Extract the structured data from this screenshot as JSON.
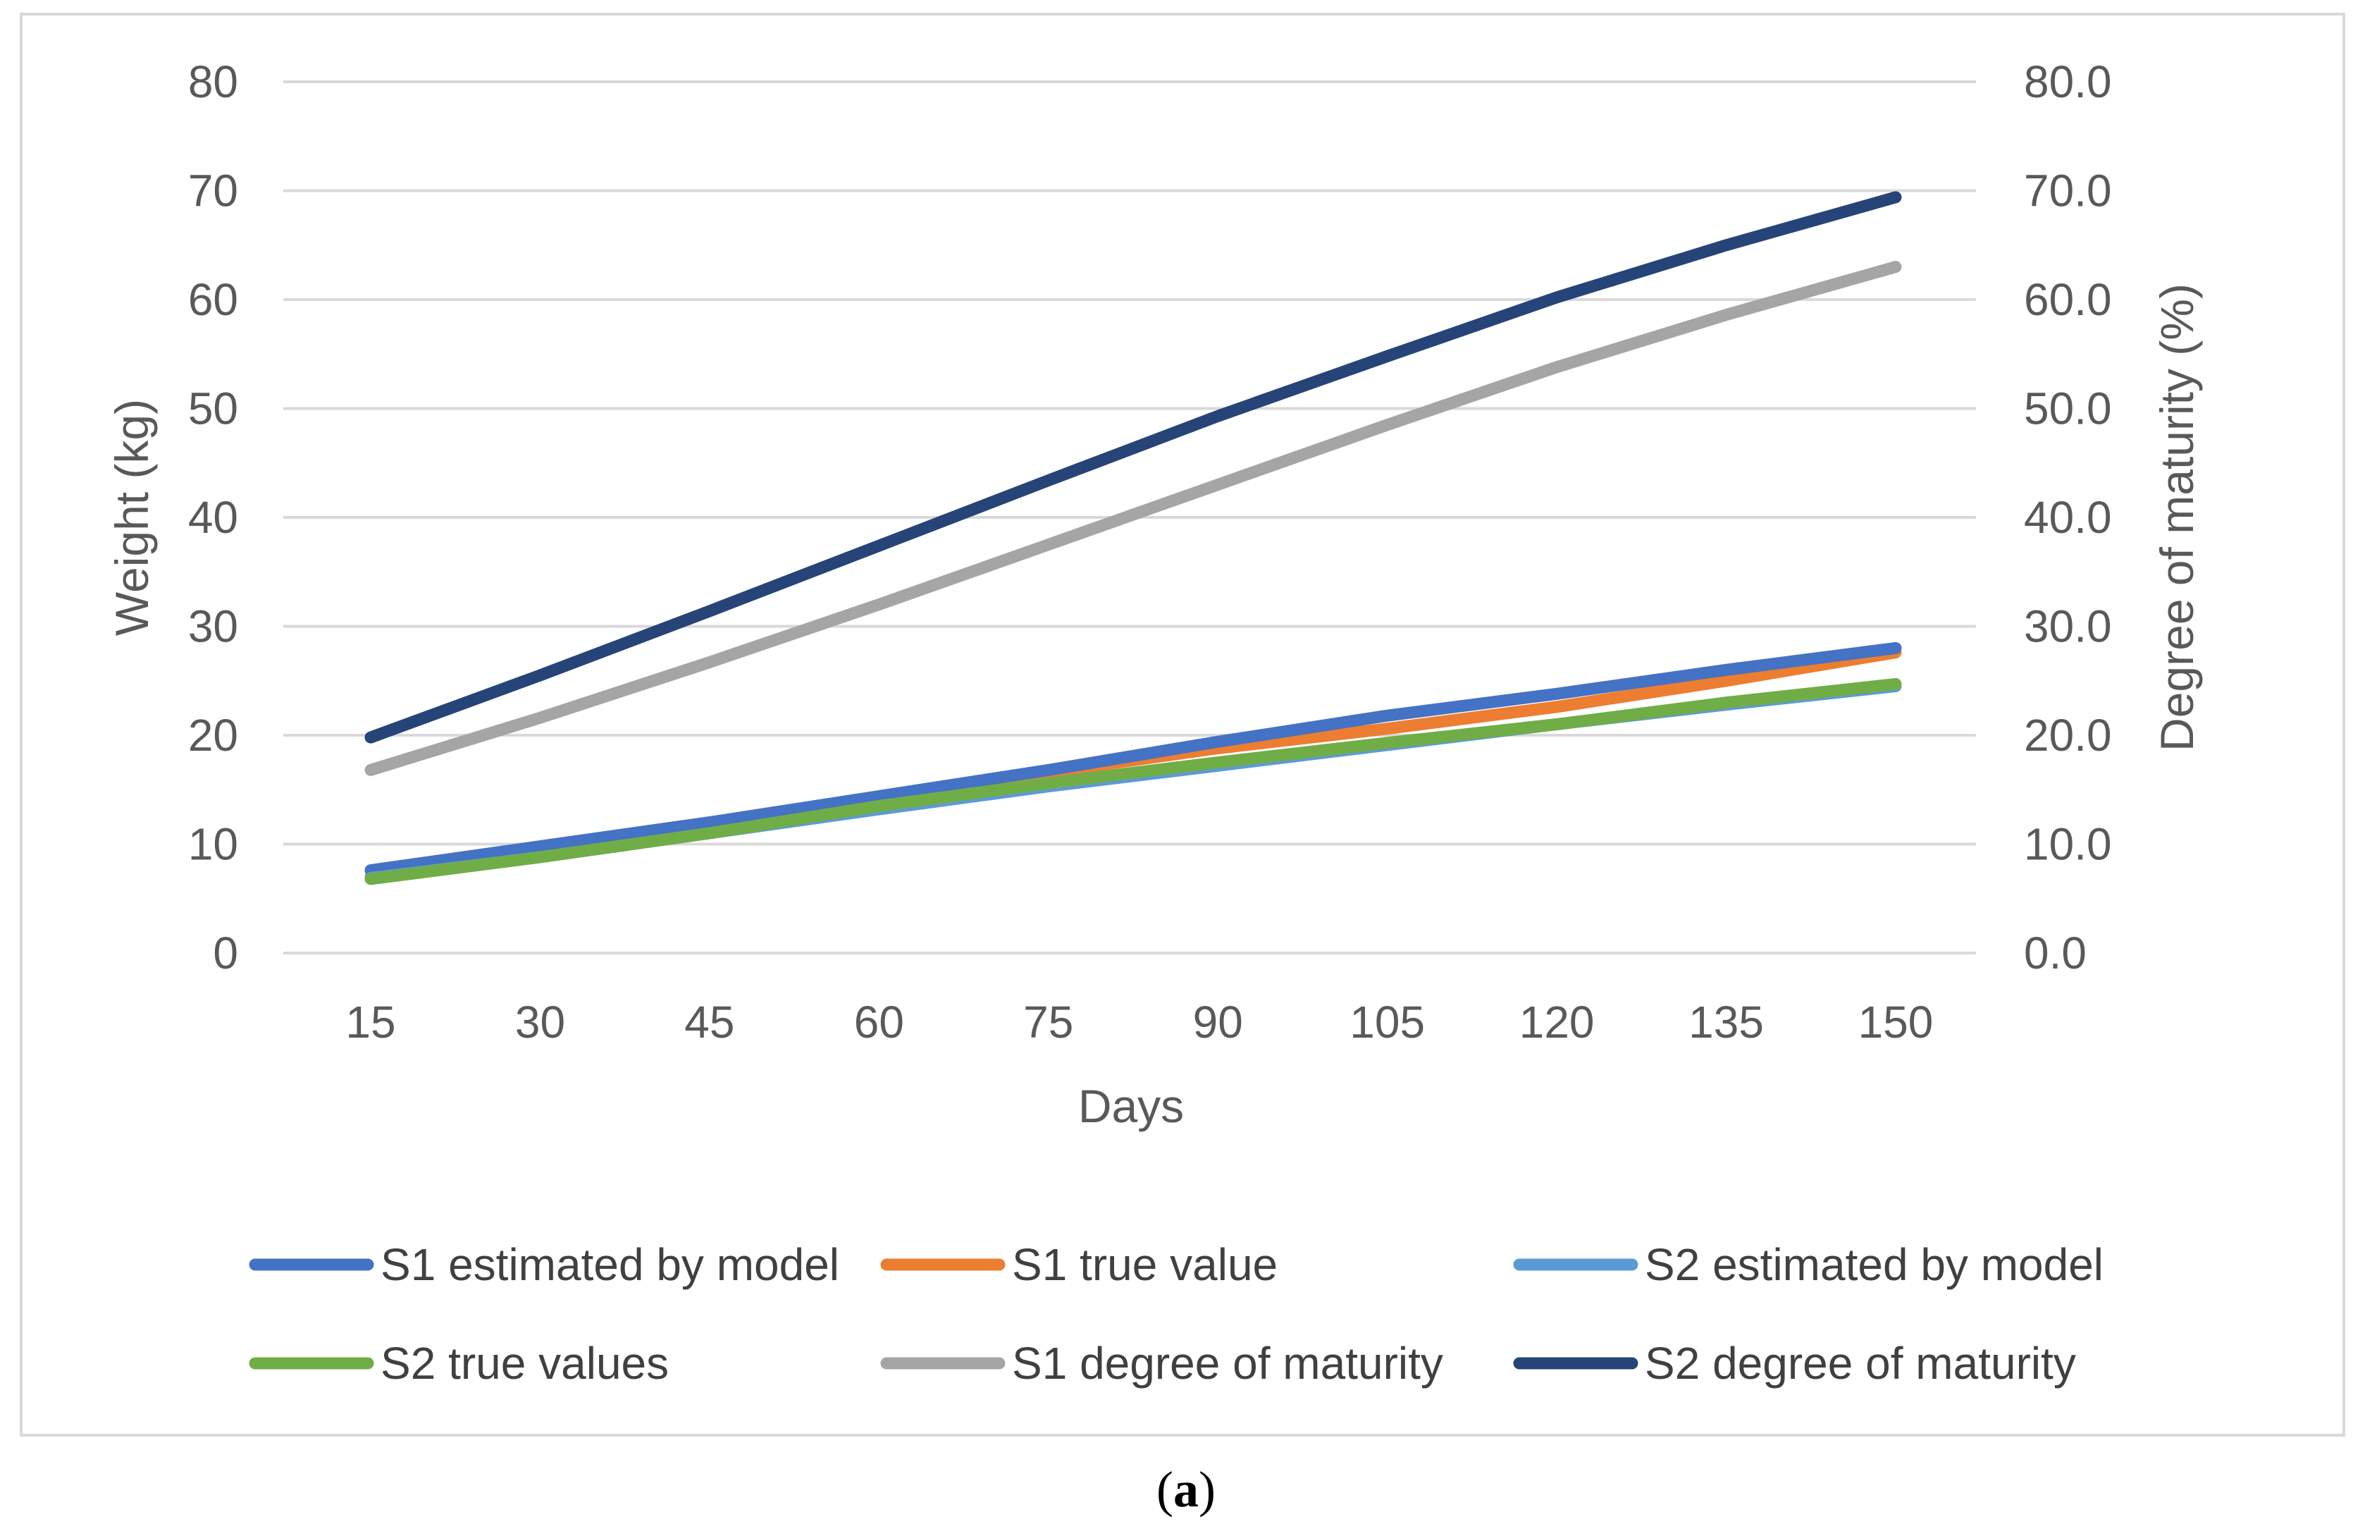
{
  "caption": {
    "open": "(",
    "letter": "a",
    "close": ")"
  },
  "chart_data": {
    "type": "line",
    "x": [
      15,
      30,
      45,
      60,
      75,
      90,
      105,
      120,
      135,
      150
    ],
    "x_tick_labels": [
      "15",
      "30",
      "45",
      "60",
      "75",
      "90",
      "105",
      "120",
      "135",
      "150"
    ],
    "xlabel": "Days",
    "ylabel": "Weight (kg)",
    "y2label": "Degree of maturity (%)",
    "ylim": [
      0,
      80
    ],
    "y2lim": [
      0,
      80
    ],
    "y_ticks": [
      "0",
      "10",
      "20",
      "30",
      "40",
      "50",
      "60",
      "70",
      "80"
    ],
    "y2_ticks": [
      "0.0",
      "10.0",
      "20.0",
      "30.0",
      "40.0",
      "50.0",
      "60.0",
      "70.0",
      "80.0"
    ],
    "grid": "horizontal",
    "legend_position": "bottom",
    "series": [
      {
        "name": "S1 estimated by model",
        "axis": "left",
        "color": "#4472C4",
        "values": [
          7.6,
          9.8,
          12.0,
          14.4,
          16.8,
          19.4,
          21.8,
          23.8,
          26.0,
          28.0
        ]
      },
      {
        "name": "S1 true value",
        "axis": "left",
        "color": "#ED7D31",
        "values": [
          7.0,
          9.5,
          11.8,
          14.3,
          16.6,
          18.8,
          20.6,
          22.6,
          25.0,
          27.6
        ]
      },
      {
        "name": "S2 estimated by model",
        "axis": "left",
        "color": "#5B9BD5",
        "values": [
          6.9,
          8.8,
          11.0,
          13.2,
          15.3,
          17.2,
          19.1,
          21.0,
          22.8,
          24.5
        ]
      },
      {
        "name": "S2 true values",
        "axis": "left",
        "color": "#70AD47",
        "values": [
          6.8,
          8.8,
          11.0,
          13.5,
          15.6,
          17.5,
          19.3,
          21.0,
          23.0,
          24.7
        ]
      },
      {
        "name": "S1 degree of maturity",
        "axis": "right",
        "color": "#A5A5A5",
        "values": [
          16.8,
          21.6,
          26.7,
          32.0,
          37.5,
          43.0,
          48.5,
          53.8,
          58.6,
          63.0
        ]
      },
      {
        "name": "S2 degree of maturity",
        "axis": "right",
        "color": "#264478",
        "values": [
          19.8,
          25.5,
          31.4,
          37.4,
          43.4,
          49.3,
          54.8,
          60.2,
          65.0,
          69.4
        ]
      }
    ]
  }
}
